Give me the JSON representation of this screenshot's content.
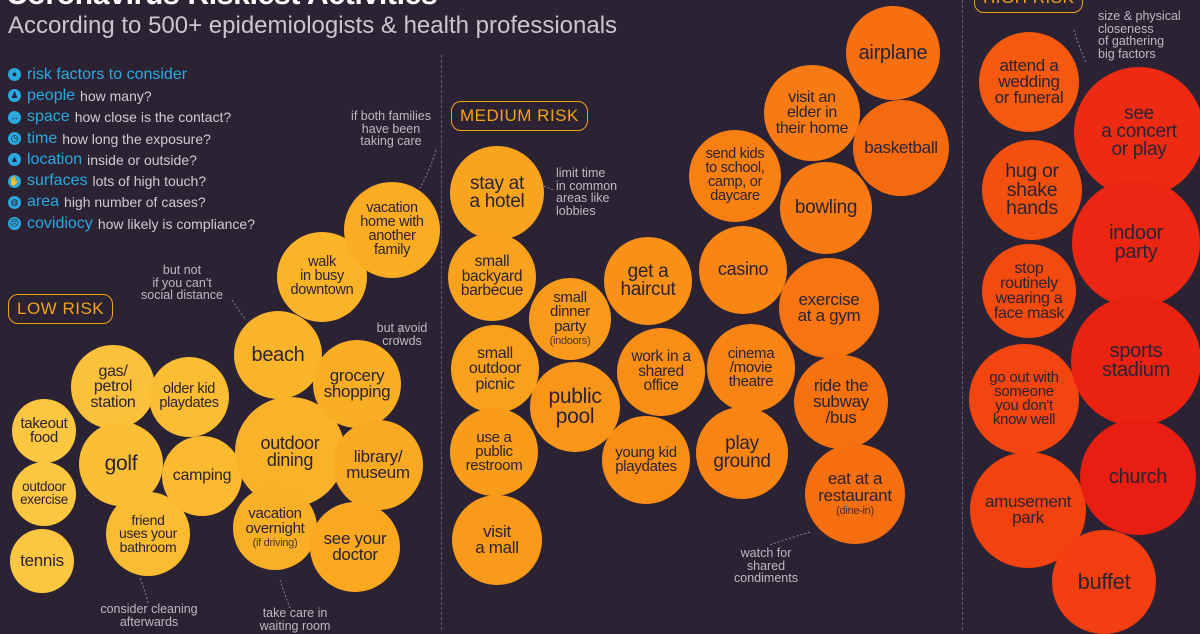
{
  "header": {
    "title": "Coronavirus Riskiest Activities",
    "subtitle": "According to 500+ epidemiologists & health professionals"
  },
  "factors": {
    "heading": "risk factors to consider",
    "items": [
      {
        "term": "people",
        "desc": "how many?",
        "icon": "people-icon"
      },
      {
        "term": "space",
        "desc": "how close is the contact?",
        "icon": "arrows-icon"
      },
      {
        "term": "time",
        "desc": "how long the exposure?",
        "icon": "clock-icon"
      },
      {
        "term": "location",
        "desc": "inside or outside?",
        "icon": "location-icon"
      },
      {
        "term": "surfaces",
        "desc": "lots of high touch?",
        "icon": "hand-icon"
      },
      {
        "term": "area",
        "desc": "high number of cases?",
        "icon": "globe-icon"
      },
      {
        "term": "covidiocy",
        "desc": "how likely is compliance?",
        "icon": "face-icon"
      }
    ]
  },
  "risk_levels": {
    "low": "LOW RISK",
    "medium": "MEDIUM RISK",
    "high": "HIGH RISK"
  },
  "notes": {
    "social_distance": "but not\nif you can't\nsocial distance",
    "both_families": "if both families\nhave been\ntaking care",
    "avoid_crowds": "but avoid\ncrowds",
    "limit_time": "limit time\nin common\nareas like\nlobbies",
    "size_closeness": "size & physical\ncloseness\nof gathering\nbig factors",
    "consider_cleaning": "consider cleaning\nafterwards",
    "waiting_room": "take care in\nwaiting room",
    "shared_condiments": "watch for\nshared\ncondiments"
  },
  "activities": [
    {
      "label": "takeout\nfood",
      "color": "#fbc640"
    },
    {
      "label": "outdoor\nexercise",
      "color": "#fbc640"
    },
    {
      "label": "tennis",
      "color": "#fbc640"
    },
    {
      "label": "gas/\npetrol\nstation",
      "color": "#fbc13a"
    },
    {
      "label": "golf",
      "color": "#fbbf36"
    },
    {
      "label": "friend\nuses your\nbathroom",
      "color": "#fbbc32"
    },
    {
      "label": "older kid\nplaydates",
      "color": "#fbbd34"
    },
    {
      "label": "camping",
      "color": "#fbba30"
    },
    {
      "label": "beach",
      "color": "#fab42a"
    },
    {
      "label": "outdoor\ndining",
      "color": "#fab228"
    },
    {
      "label": "vacation\novernight",
      "sub": "(if driving)",
      "color": "#fab026"
    },
    {
      "label": "walk\nin busy\ndowntown",
      "color": "#fbb428"
    },
    {
      "label": "grocery\nshopping",
      "color": "#faae24"
    },
    {
      "label": "library/\nmuseum",
      "color": "#faaa22"
    },
    {
      "label": "see your\ndoctor",
      "color": "#faa820"
    },
    {
      "label": "vacation\nhome with\nanother\nfamily",
      "color": "#fbac22"
    },
    {
      "label": "stay at\na hotel",
      "color": "#f9a41e"
    },
    {
      "label": "small\nbackyard\nbarbecue",
      "color": "#f9a21e"
    },
    {
      "label": "small\noutdoor\npicnic",
      "color": "#f9a01c"
    },
    {
      "label": "use a\npublic\nrestroom",
      "color": "#f99c1a"
    },
    {
      "label": "visit\na mall",
      "color": "#f99a1a"
    },
    {
      "label": "small\ndinner\nparty",
      "sub": "(indoors)",
      "color": "#f99a1a"
    },
    {
      "label": "public\npool",
      "color": "#f99518"
    },
    {
      "label": "get a\nhaircut",
      "color": "#f99018"
    },
    {
      "label": "work in a\nshared\noffice",
      "color": "#f98e16"
    },
    {
      "label": "young kid\nplaydates",
      "color": "#f98e16"
    },
    {
      "label": "casino",
      "color": "#f88514"
    },
    {
      "label": "cinema\n/movie\ntheatre",
      "color": "#f88414"
    },
    {
      "label": "play\nground",
      "color": "#f88414"
    },
    {
      "label": "send kids\nto school,\ncamp, or\ndaycare",
      "color": "#f88012"
    },
    {
      "label": "visit an\nelder in\ntheir home",
      "color": "#f77a12"
    },
    {
      "label": "bowling",
      "color": "#f77a12"
    },
    {
      "label": "exercise\nat a gym",
      "color": "#f77510"
    },
    {
      "label": "ride the\nsubway\n/bus",
      "color": "#f6720f"
    },
    {
      "label": "eat at a\nrestaurant",
      "sub": "(dine-in)",
      "color": "#f56e0f"
    },
    {
      "label": "airplane",
      "color": "#f66f10"
    },
    {
      "label": "basketball",
      "color": "#f56a0f"
    },
    {
      "label": "attend a\nwedding\nor funeral",
      "color": "#f4590f"
    },
    {
      "label": "hug or\nshake\nhands",
      "color": "#f3500f"
    },
    {
      "label": "stop\nroutinely\nwearing a\nface mask",
      "color": "#f24a0f"
    },
    {
      "label": "go out with\nsomeone\nyou don't\nknow well",
      "color": "#f2450f"
    },
    {
      "label": "amusement\npark",
      "color": "#f2420f"
    },
    {
      "label": "see\na concert\nor play",
      "color": "#ed2a12"
    },
    {
      "label": "indoor\nparty",
      "color": "#ec2612"
    },
    {
      "label": "sports\nstadium",
      "color": "#ea2212"
    },
    {
      "label": "church",
      "color": "#e81e12"
    },
    {
      "label": "buffet",
      "color": "#f23e10"
    }
  ]
}
